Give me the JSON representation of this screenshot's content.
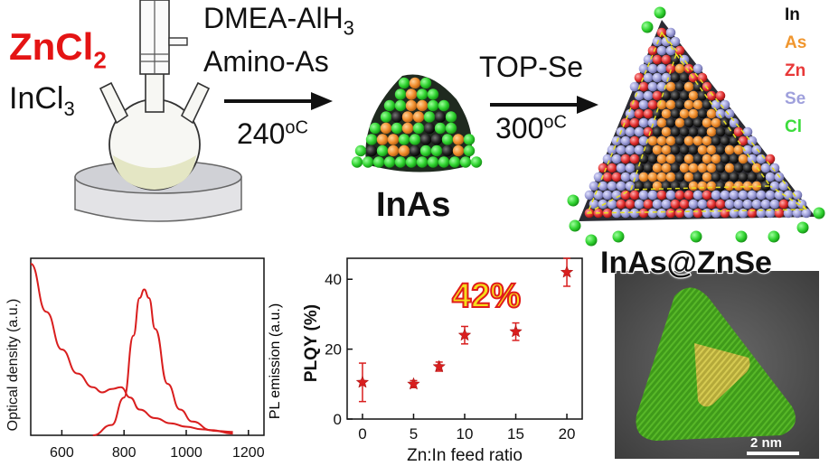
{
  "reaction": {
    "reagent_main": "ZnCl",
    "reagent_main_sub": "2",
    "reagent_second": "InCl",
    "reagent_second_sub": "3",
    "step1_reagents_line1_pre": "DMEA-AlH",
    "step1_reagents_line1_sub": "3",
    "step1_reagents_line2": "Amino-As",
    "step1_temp": "240",
    "step1_temp_unit": "oC",
    "product1": "InAs",
    "step2_reagent": "TOP-Se",
    "step2_temp": "300",
    "step2_temp_unit": "oC"
  },
  "legend": [
    {
      "label": "In",
      "color": "#111111"
    },
    {
      "label": "As",
      "color": "#f0962e"
    },
    {
      "label": "Zn",
      "color": "#e83838"
    },
    {
      "label": "Se",
      "color": "#9fa0dc"
    },
    {
      "label": "Cl",
      "color": "#3cdc3c"
    }
  ],
  "tem": {
    "title": "InAs@ZnSe",
    "scale_bar": "2 nm"
  },
  "chart_data": [
    {
      "type": "line",
      "xlabel": "",
      "ylabel": "Optical density (a.u.)",
      "ylabel_right": "PL emission (a.u.)",
      "xlim": [
        500,
        1250
      ],
      "x_ticks": [
        600,
        800,
        1000,
        1200
      ],
      "series": [
        {
          "x": [
            500,
            550,
            600,
            650,
            700,
            730,
            760,
            790,
            820,
            850,
            900,
            950,
            1000,
            1050,
            1100,
            1150
          ],
          "values": [
            1.0,
            0.72,
            0.5,
            0.36,
            0.28,
            0.25,
            0.27,
            0.28,
            0.22,
            0.15,
            0.1,
            0.07,
            0.05,
            0.035,
            0.025,
            0.02
          ]
        },
        {
          "x": [
            700,
            760,
            800,
            830,
            850,
            865,
            880,
            900,
            940,
            980,
            1020,
            1080,
            1150
          ],
          "values": [
            0.0,
            0.06,
            0.22,
            0.58,
            0.8,
            0.85,
            0.8,
            0.62,
            0.3,
            0.15,
            0.08,
            0.03,
            0.01
          ]
        }
      ]
    },
    {
      "type": "scatter",
      "xlabel": "Zn:In feed ratio",
      "ylabel": "PLQY (%)",
      "xlim": [
        -1.5,
        21.5
      ],
      "ylim": [
        0,
        46
      ],
      "x_ticks": [
        0,
        5,
        10,
        15,
        20
      ],
      "y_ticks": [
        0,
        20,
        40
      ],
      "highlight": "42%",
      "series": [
        {
          "x": [
            0,
            5,
            7.5,
            10,
            15,
            20
          ],
          "values": [
            10.5,
            10,
            15,
            24,
            25,
            42
          ],
          "err": [
            5.5,
            1.0,
            1.3,
            2.5,
            2.5,
            4.0
          ]
        }
      ]
    }
  ]
}
